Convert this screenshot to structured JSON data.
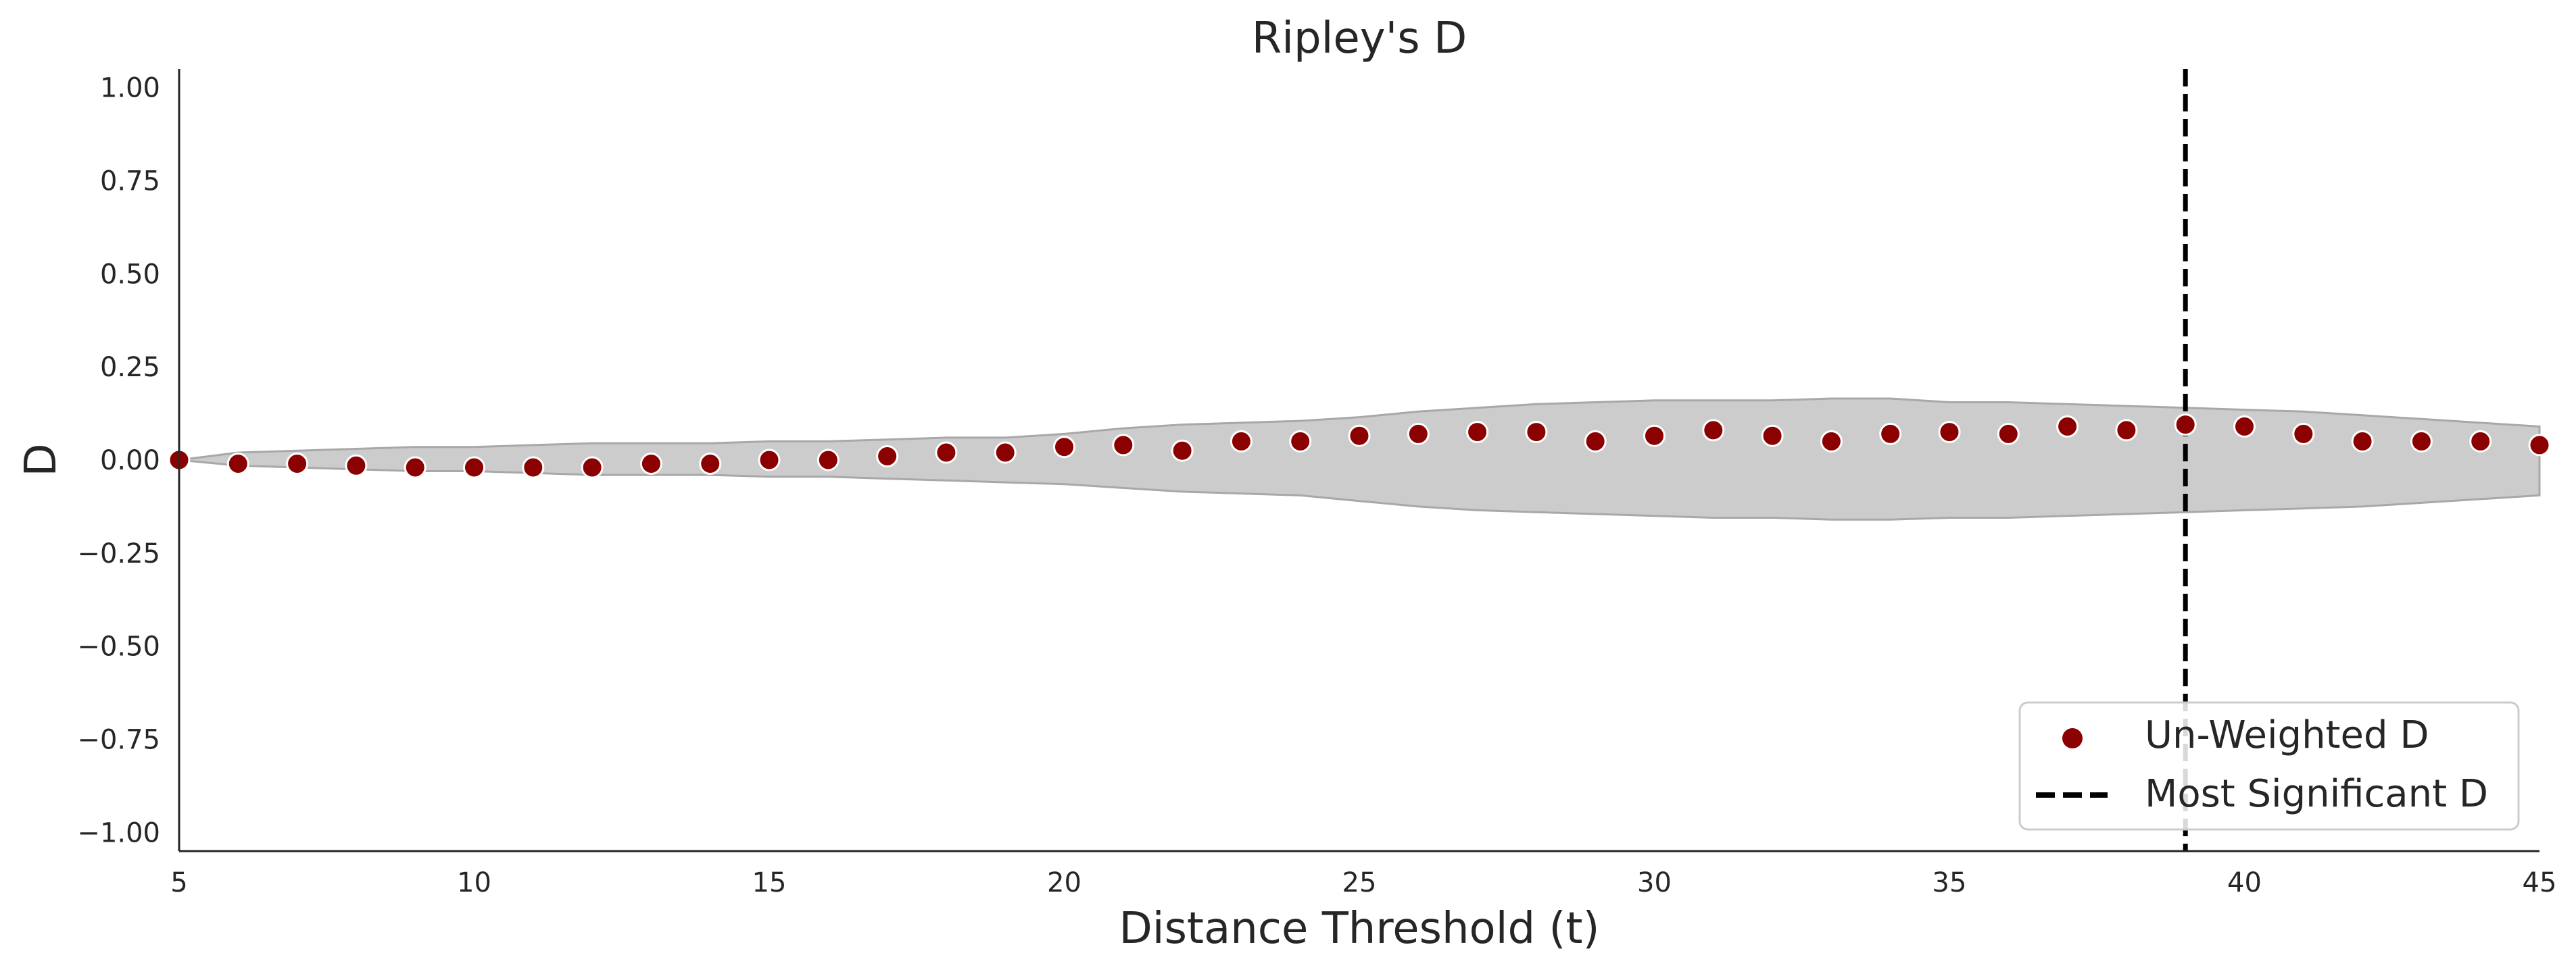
{
  "chart_data": {
    "type": "scatter",
    "title": "Ripley's D",
    "xlabel": "Distance Threshold (t)",
    "ylabel": "D",
    "xlim": [
      5,
      45
    ],
    "ylim": [
      -1.05,
      1.05
    ],
    "xticks": [
      5,
      10,
      15,
      20,
      25,
      30,
      35,
      40,
      45
    ],
    "yticks": [
      -1.0,
      -0.75,
      -0.5,
      -0.25,
      0.0,
      0.25,
      0.5,
      0.75,
      1.0
    ],
    "ytick_labels": [
      "−1.00",
      "−0.75",
      "−0.50",
      "−0.25",
      "0.00",
      "0.25",
      "0.50",
      "0.75",
      "1.00"
    ],
    "xtick_labels": [
      "5",
      "10",
      "15",
      "20",
      "25",
      "30",
      "35",
      "40",
      "45"
    ],
    "grid": false,
    "series": [
      {
        "name": "Un-Weighted D",
        "color": "#8b0000",
        "marker": "circle",
        "x": [
          5,
          6,
          7,
          8,
          9,
          10,
          11,
          12,
          13,
          14,
          15,
          16,
          17,
          18,
          19,
          20,
          21,
          22,
          23,
          24,
          25,
          26,
          27,
          28,
          29,
          30,
          31,
          32,
          33,
          34,
          35,
          36,
          37,
          38,
          39,
          40,
          41,
          42,
          43,
          44,
          45
        ],
        "y": [
          0.0,
          -0.01,
          -0.01,
          -0.015,
          -0.02,
          -0.02,
          -0.02,
          -0.02,
          -0.01,
          -0.01,
          0.0,
          0.0,
          0.01,
          0.02,
          0.02,
          0.035,
          0.04,
          0.025,
          0.05,
          0.05,
          0.065,
          0.07,
          0.075,
          0.075,
          0.05,
          0.065,
          0.08,
          0.065,
          0.05,
          0.07,
          0.075,
          0.07,
          0.09,
          0.08,
          0.095,
          0.09,
          0.07,
          0.05,
          0.05,
          0.05,
          0.04
        ]
      }
    ],
    "envelope": {
      "color": "#cccccc",
      "edge_color": "#a8a8a8",
      "x": [
        5,
        6,
        7,
        8,
        9,
        10,
        11,
        12,
        13,
        14,
        15,
        16,
        17,
        18,
        19,
        20,
        21,
        22,
        23,
        24,
        25,
        26,
        27,
        28,
        29,
        30,
        31,
        32,
        33,
        34,
        35,
        36,
        37,
        38,
        39,
        40,
        41,
        42,
        43,
        44,
        45
      ],
      "upper": [
        0.0,
        0.02,
        0.025,
        0.03,
        0.035,
        0.035,
        0.04,
        0.045,
        0.045,
        0.045,
        0.05,
        0.05,
        0.055,
        0.06,
        0.06,
        0.07,
        0.085,
        0.095,
        0.1,
        0.105,
        0.115,
        0.13,
        0.14,
        0.15,
        0.155,
        0.16,
        0.16,
        0.16,
        0.165,
        0.165,
        0.155,
        0.155,
        0.15,
        0.145,
        0.14,
        0.135,
        0.13,
        0.12,
        0.11,
        0.1,
        0.09
      ],
      "lower": [
        0.0,
        -0.015,
        -0.02,
        -0.025,
        -0.03,
        -0.03,
        -0.035,
        -0.04,
        -0.04,
        -0.04,
        -0.045,
        -0.045,
        -0.05,
        -0.055,
        -0.06,
        -0.065,
        -0.075,
        -0.085,
        -0.09,
        -0.095,
        -0.11,
        -0.125,
        -0.135,
        -0.14,
        -0.145,
        -0.15,
        -0.155,
        -0.155,
        -0.16,
        -0.16,
        -0.155,
        -0.155,
        -0.15,
        -0.145,
        -0.14,
        -0.135,
        -0.13,
        -0.125,
        -0.115,
        -0.105,
        -0.095
      ]
    },
    "vline": {
      "name": "Most Significant D",
      "x": 39,
      "color": "#000000",
      "style": "dashed"
    },
    "legend": {
      "placement": "lower-right",
      "entries": [
        "Un-Weighted D",
        "Most Significant D"
      ]
    }
  }
}
